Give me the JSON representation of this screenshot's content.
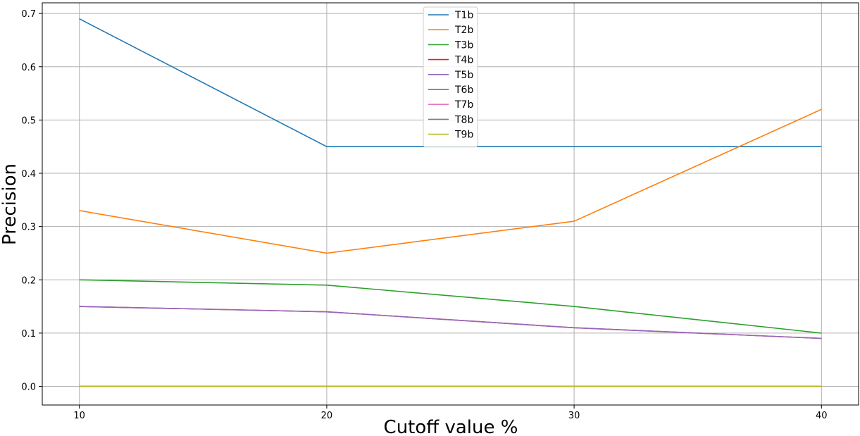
{
  "chart_data": {
    "type": "line",
    "title": "",
    "xlabel": "Cutoff value %",
    "ylabel": "Precision",
    "x": [
      10,
      20,
      30,
      40
    ],
    "xlim": [
      8.5,
      41.5
    ],
    "ylim": [
      -0.035,
      0.72
    ],
    "xticks": [
      "10",
      "20",
      "30",
      "40"
    ],
    "yticks": [
      "0.0",
      "0.1",
      "0.2",
      "0.3",
      "0.4",
      "0.5",
      "0.6",
      "0.7"
    ],
    "grid": true,
    "legend_position": "top-center",
    "series": [
      {
        "name": "T1b",
        "color": "#1f77b4",
        "values": [
          0.69,
          0.45,
          0.45,
          0.45
        ]
      },
      {
        "name": "T2b",
        "color": "#ff7f0e",
        "values": [
          0.33,
          0.25,
          0.31,
          0.52
        ]
      },
      {
        "name": "T3b",
        "color": "#2ca02c",
        "values": [
          0.2,
          0.19,
          0.15,
          0.1
        ]
      },
      {
        "name": "T4b",
        "color": "#d62728",
        "values": [
          0.15,
          0.14,
          0.11,
          0.09
        ]
      },
      {
        "name": "T5b",
        "color": "#9467bd",
        "values": [
          0.15,
          0.14,
          0.11,
          0.09
        ]
      },
      {
        "name": "T6b",
        "color": "#8c564b",
        "values": [
          0.0,
          0.0,
          0.0,
          0.0
        ]
      },
      {
        "name": "T7b",
        "color": "#e377c2",
        "values": [
          0.0,
          0.0,
          0.0,
          0.0
        ]
      },
      {
        "name": "T8b",
        "color": "#7f7f7f",
        "values": [
          0.0,
          0.0,
          0.0,
          0.0
        ]
      },
      {
        "name": "T9b",
        "color": "#bcbd22",
        "values": [
          0.0,
          0.0,
          0.0,
          0.0
        ]
      }
    ]
  }
}
